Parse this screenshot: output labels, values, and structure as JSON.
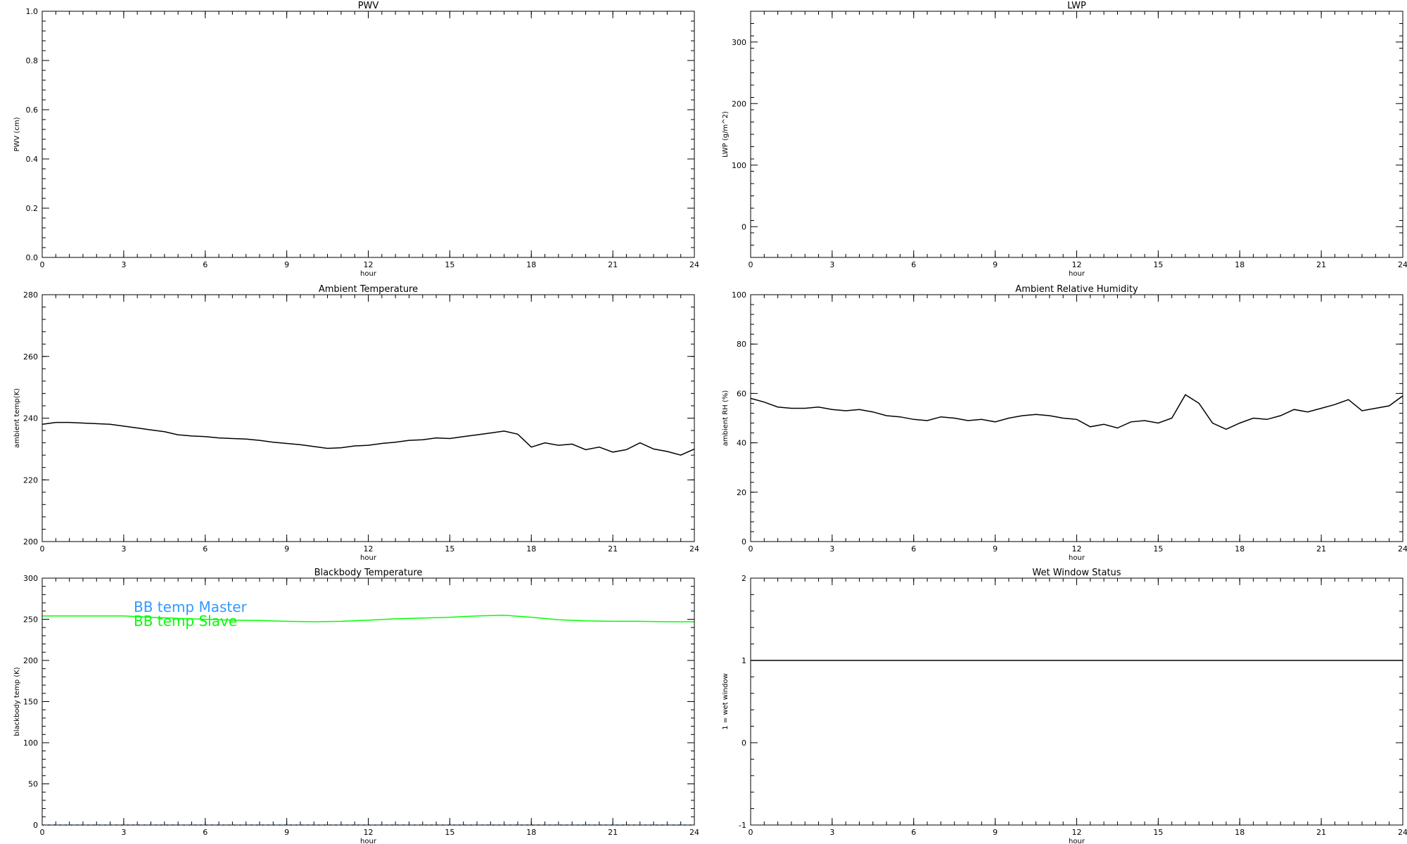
{
  "chart_data": [
    {
      "type": "line",
      "title": "PWV",
      "xlabel": "hour",
      "ylabel": "PWV (cm)",
      "xlim": [
        0,
        24
      ],
      "xticks": [
        0,
        3,
        6,
        9,
        12,
        15,
        18,
        21,
        24
      ],
      "ylim": [
        0,
        1.0
      ],
      "yticks": [
        0.0,
        0.2,
        0.4,
        0.6,
        0.8,
        1.0
      ],
      "yticklabels": [
        "0.0",
        "0.2",
        "0.4",
        "0.6",
        "0.8",
        "1.0"
      ],
      "series": []
    },
    {
      "type": "line",
      "title": "LWP",
      "xlabel": "hour",
      "ylabel": "LWP (g/m^2)",
      "xlim": [
        0,
        24
      ],
      "xticks": [
        0,
        3,
        6,
        9,
        12,
        15,
        18,
        21,
        24
      ],
      "ylim": [
        -50,
        350
      ],
      "yticks": [
        0,
        100,
        200,
        300
      ],
      "yticklabels": [
        "0",
        "100",
        "200",
        "300"
      ],
      "series": []
    },
    {
      "type": "line",
      "title": "Ambient Temperature",
      "xlabel": "hour",
      "ylabel": "ambient temp(K)",
      "xlim": [
        0,
        24
      ],
      "xticks": [
        0,
        3,
        6,
        9,
        12,
        15,
        18,
        21,
        24
      ],
      "ylim": [
        200,
        280
      ],
      "yticks": [
        200,
        220,
        240,
        260,
        280
      ],
      "yticklabels": [
        "200",
        "220",
        "240",
        "260",
        "280"
      ],
      "series": [
        {
          "color": "#000000",
          "x": [
            0,
            0.5,
            1,
            1.5,
            2,
            2.5,
            3,
            3.5,
            4,
            4.5,
            5,
            5.5,
            6,
            6.5,
            7,
            7.5,
            8,
            8.5,
            9,
            9.5,
            10,
            10.5,
            11,
            11.5,
            12,
            12.5,
            13,
            13.5,
            14,
            14.5,
            15,
            15.5,
            16,
            16.5,
            17,
            17.5,
            18,
            18.5,
            19,
            19.5,
            20,
            20.5,
            21,
            21.5,
            22,
            22.5,
            23,
            23.5,
            24
          ],
          "y": [
            238,
            238.6,
            238.6,
            238.4,
            238.2,
            238,
            237.4,
            236.8,
            236.2,
            235.6,
            234.6,
            234.2,
            234,
            233.6,
            233.4,
            233.2,
            232.8,
            232.2,
            231.8,
            231.4,
            230.8,
            230.2,
            230.4,
            231,
            231.2,
            231.8,
            232.2,
            232.8,
            233,
            233.6,
            233.4,
            234,
            234.6,
            235.2,
            235.8,
            234.8,
            230.6,
            232,
            231.2,
            231.6,
            229.8,
            230.6,
            229,
            229.8,
            232,
            230,
            229.2,
            228,
            230
          ]
        }
      ]
    },
    {
      "type": "line",
      "title": "Ambient Relative Humidity",
      "xlabel": "hour",
      "ylabel": "ambient RH (%)",
      "xlim": [
        0,
        24
      ],
      "xticks": [
        0,
        3,
        6,
        9,
        12,
        15,
        18,
        21,
        24
      ],
      "ylim": [
        0,
        100
      ],
      "yticks": [
        0,
        20,
        40,
        60,
        80,
        100
      ],
      "yticklabels": [
        "0",
        "20",
        "40",
        "60",
        "80",
        "100"
      ],
      "series": [
        {
          "color": "#000000",
          "x": [
            0,
            0.5,
            1,
            1.5,
            2,
            2.5,
            3,
            3.5,
            4,
            4.5,
            5,
            5.5,
            6,
            6.5,
            7,
            7.5,
            8,
            8.5,
            9,
            9.5,
            10,
            10.5,
            11,
            11.5,
            12,
            12.5,
            13,
            13.5,
            14,
            14.5,
            15,
            15.5,
            16,
            16.5,
            17,
            17.5,
            18,
            18.5,
            19,
            19.5,
            20,
            20.5,
            21,
            21.5,
            22,
            22.5,
            23,
            23.5,
            24
          ],
          "y": [
            58,
            56.5,
            54.5,
            54,
            54,
            54.5,
            53.5,
            53,
            53.5,
            52.5,
            51,
            50.5,
            49.5,
            49,
            50.5,
            50,
            49,
            49.5,
            48.5,
            50,
            51,
            51.5,
            51,
            50,
            49.5,
            46.5,
            47.5,
            46,
            48.5,
            49,
            48,
            50,
            59.5,
            56,
            48,
            45.5,
            48,
            50,
            49.5,
            51,
            53.5,
            52.5,
            54,
            55.5,
            57.5,
            53,
            54,
            55,
            59
          ]
        }
      ]
    },
    {
      "type": "line",
      "title": "Blackbody Temperature",
      "xlabel": "hour",
      "ylabel": "blackbody temp (K)",
      "xlim": [
        0,
        24
      ],
      "xticks": [
        0,
        3,
        6,
        9,
        12,
        15,
        18,
        21,
        24
      ],
      "ylim": [
        0,
        300
      ],
      "yticks": [
        0,
        50,
        100,
        150,
        200,
        250,
        300
      ],
      "yticklabels": [
        "0",
        "50",
        "100",
        "150",
        "200",
        "250",
        "300"
      ],
      "legend": "top-left",
      "series": [
        {
          "name": "BB temp Master",
          "color": "#3399ff",
          "x": [
            0,
            24
          ],
          "y": [
            0,
            0
          ]
        },
        {
          "name": "BB temp Slave",
          "color": "#00ff00",
          "x": [
            0,
            1,
            2,
            3,
            4,
            5,
            6,
            7,
            8,
            9,
            10,
            11,
            12,
            13,
            14,
            15,
            16,
            17,
            18,
            19,
            20,
            21,
            22,
            23,
            24
          ],
          "y": [
            254,
            254,
            254,
            254,
            252.5,
            251,
            250,
            249,
            248.5,
            247.5,
            247,
            247.5,
            249,
            250.5,
            251.5,
            252.5,
            254,
            255,
            252.5,
            249.5,
            248,
            247.5,
            247.5,
            247,
            247
          ]
        }
      ]
    },
    {
      "type": "line",
      "title": "Wet Window Status",
      "xlabel": "hour",
      "ylabel": "1 = wet window",
      "xlim": [
        0,
        24
      ],
      "xticks": [
        0,
        3,
        6,
        9,
        12,
        15,
        18,
        21,
        24
      ],
      "ylim": [
        -1,
        2
      ],
      "yticks": [
        -1,
        0,
        1,
        2
      ],
      "yticklabels": [
        "-1",
        "0",
        "1",
        "2"
      ],
      "series": [
        {
          "color": "#000000",
          "x": [
            0,
            24
          ],
          "y": [
            1,
            1
          ]
        }
      ]
    }
  ]
}
